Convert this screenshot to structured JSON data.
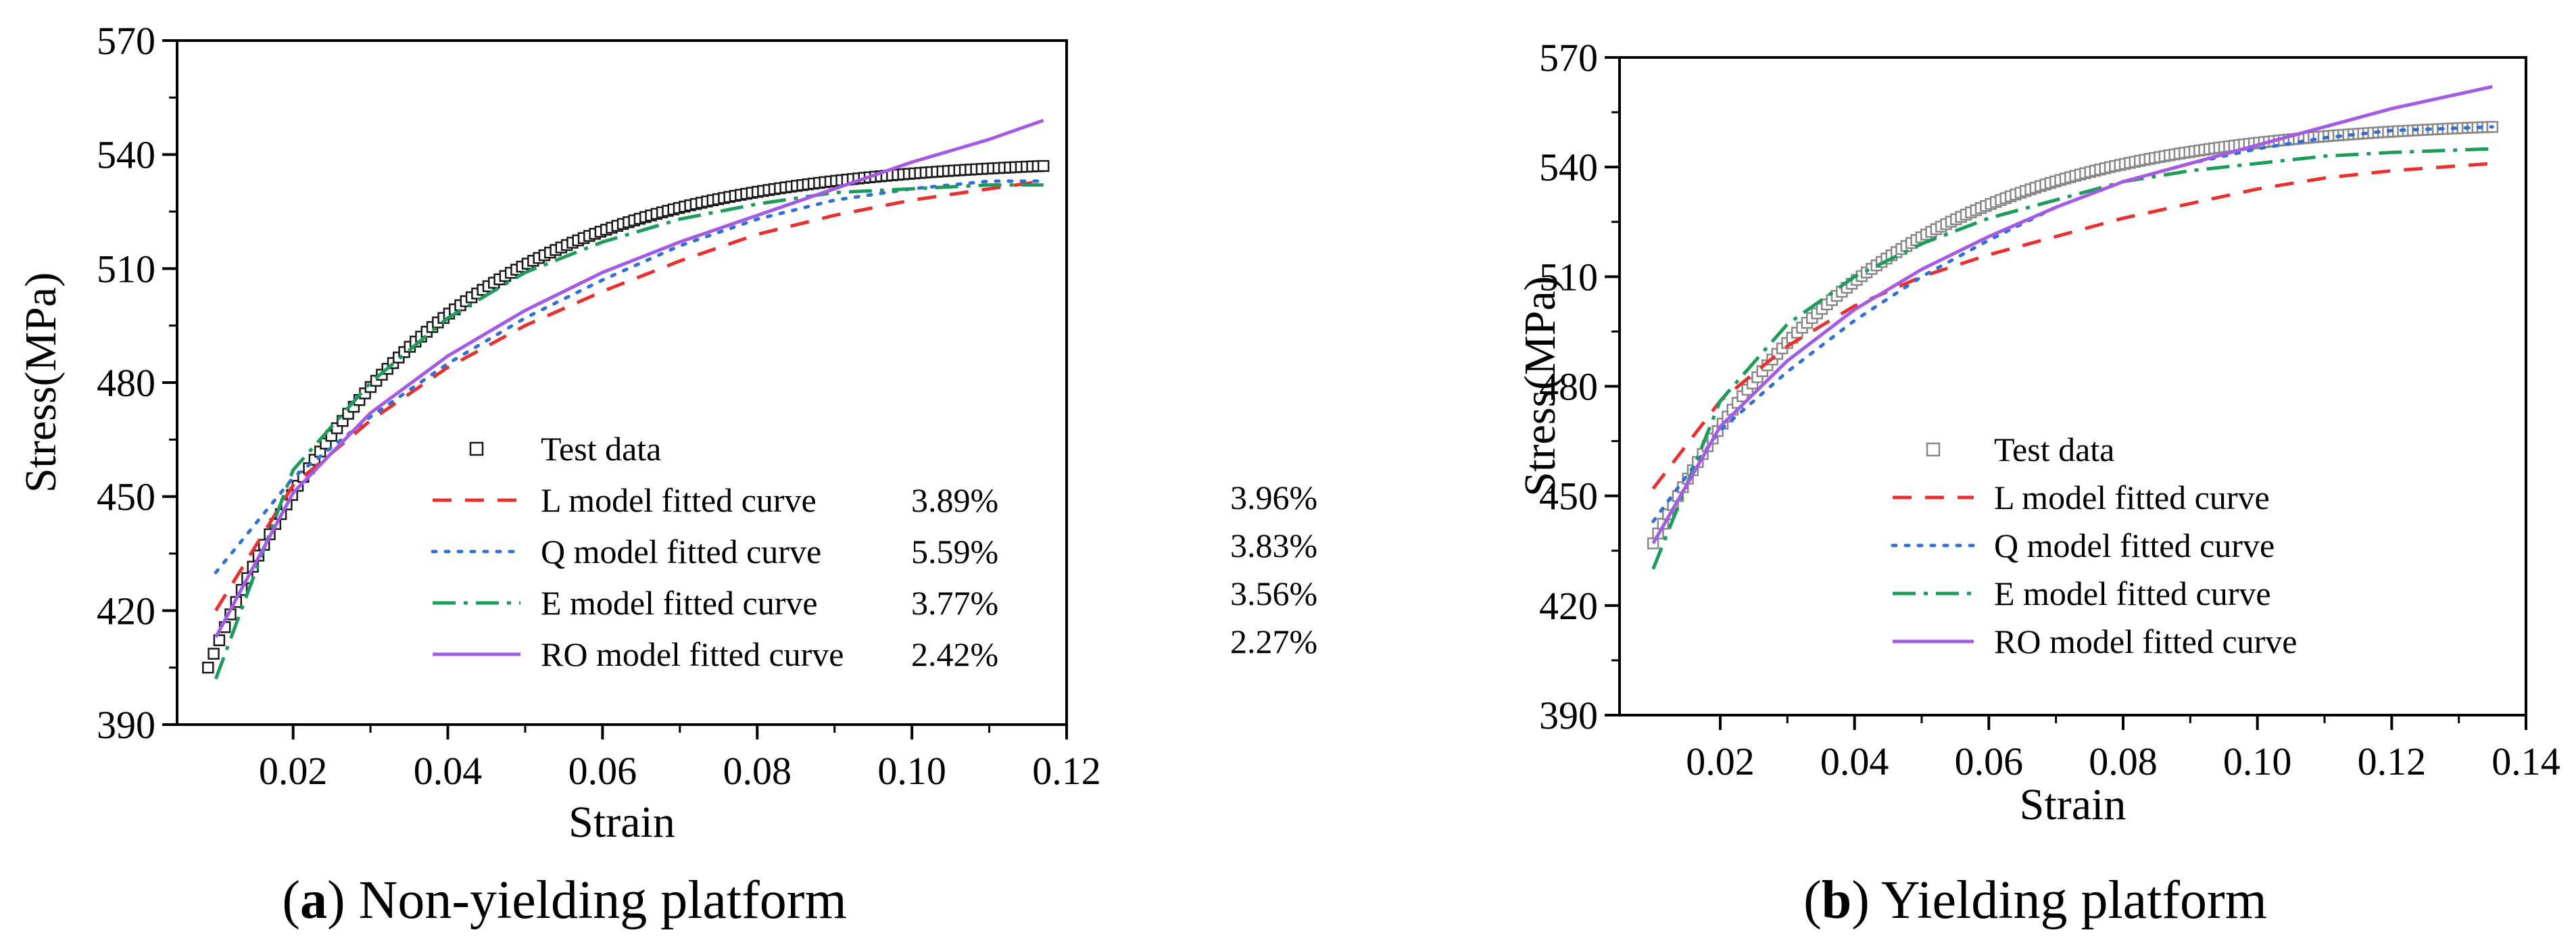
{
  "chart_data": [
    {
      "type": "scatter",
      "caption_letter": "a",
      "caption_text": ") Non-yielding platform",
      "caption_open": "(",
      "xlabel": "Strain",
      "ylabel": "Stress(MPa)",
      "xlim": [
        0.005,
        0.12
      ],
      "ylim": [
        390,
        570
      ],
      "xticks": [
        0.02,
        0.04,
        0.06,
        0.08,
        0.1,
        0.12
      ],
      "xtick_labels": [
        "0.02",
        "0.04",
        "0.06",
        "0.08",
        "0.10",
        "0.12"
      ],
      "yticks": [
        390,
        420,
        450,
        480,
        510,
        540,
        570
      ],
      "ytick_labels": [
        "390",
        "420",
        "450",
        "480",
        "510",
        "540",
        "570"
      ],
      "test_data": {
        "name": "Test data",
        "x_start": 0.009,
        "x_end": 0.117,
        "count": 150,
        "y_start": 405,
        "y_end": 537,
        "rate": 38
      },
      "series": [
        {
          "name": "L model fitted curve",
          "error": "3.89%",
          "style": "dashed",
          "color": "#e8312f",
          "x": [
            0.01,
            0.02,
            0.03,
            0.04,
            0.05,
            0.06,
            0.07,
            0.08,
            0.09,
            0.1,
            0.11,
            0.117
          ],
          "y": [
            420,
            453,
            470,
            484,
            495,
            504,
            512,
            519,
            524,
            528,
            531,
            533
          ]
        },
        {
          "name": "Q model fitted curve",
          "error": "5.59%",
          "style": "dotted",
          "color": "#2f6fd8",
          "x": [
            0.01,
            0.02,
            0.03,
            0.04,
            0.05,
            0.06,
            0.07,
            0.08,
            0.09,
            0.1,
            0.11,
            0.117
          ],
          "y": [
            430,
            455,
            471,
            485,
            497,
            507,
            516,
            523,
            528,
            531,
            533,
            533
          ]
        },
        {
          "name": "E model fitted curve",
          "error": "3.77%",
          "style": "dashdot",
          "color": "#1c9c5a",
          "x": [
            0.01,
            0.02,
            0.03,
            0.04,
            0.05,
            0.06,
            0.07,
            0.08,
            0.09,
            0.1,
            0.11,
            0.117
          ],
          "y": [
            402,
            457,
            480,
            497,
            509,
            517,
            523,
            527,
            530,
            531,
            532,
            532
          ]
        },
        {
          "name": "RO model fitted curve",
          "error": "2.42%",
          "style": "solid",
          "color": "#a55ae6",
          "x": [
            0.01,
            0.02,
            0.03,
            0.04,
            0.05,
            0.06,
            0.07,
            0.08,
            0.09,
            0.1,
            0.11,
            0.117
          ],
          "y": [
            413,
            451,
            472,
            487,
            499,
            509,
            517,
            524,
            531,
            538,
            544,
            549
          ]
        }
      ]
    },
    {
      "type": "scatter",
      "caption_letter": "b",
      "caption_text": ") Yielding platform",
      "caption_open": "(",
      "xlabel": "Strain",
      "ylabel": "Stress(MPa)",
      "xlim": [
        0.005,
        0.14
      ],
      "ylim": [
        390,
        570
      ],
      "xticks": [
        0.02,
        0.04,
        0.06,
        0.08,
        0.1,
        0.12,
        0.14
      ],
      "xtick_labels": [
        "0.02",
        "0.04",
        "0.06",
        "0.08",
        "0.10",
        "0.12",
        "0.14"
      ],
      "yticks": [
        390,
        420,
        450,
        480,
        510,
        540,
        570
      ],
      "ytick_labels": [
        "390",
        "420",
        "450",
        "480",
        "510",
        "540",
        "570"
      ],
      "test_data": {
        "name": "Test data",
        "x_start": 0.01,
        "x_end": 0.135,
        "count": 170,
        "y_start": 437,
        "y_end": 551,
        "rate": 32
      },
      "series": [
        {
          "name": "L model fitted curve",
          "error": "3.96%",
          "style": "dashed",
          "color": "#e8312f",
          "x": [
            0.01,
            0.02,
            0.03,
            0.04,
            0.05,
            0.06,
            0.07,
            0.08,
            0.09,
            0.1,
            0.11,
            0.12,
            0.135
          ],
          "y": [
            452,
            476,
            491,
            502,
            510,
            516,
            521,
            526,
            530,
            534,
            537,
            539,
            541
          ]
        },
        {
          "name": "Q model fitted curve",
          "error": "3.83%",
          "style": "dotted",
          "color": "#2f6fd8",
          "x": [
            0.01,
            0.02,
            0.03,
            0.04,
            0.05,
            0.06,
            0.07,
            0.08,
            0.09,
            0.1,
            0.11,
            0.12,
            0.135
          ],
          "y": [
            443,
            468,
            484,
            498,
            510,
            520,
            529,
            536,
            541,
            545,
            548,
            550,
            551
          ]
        },
        {
          "name": "E model fitted curve",
          "error": "3.56%",
          "style": "dashdot",
          "color": "#1c9c5a",
          "x": [
            0.01,
            0.02,
            0.03,
            0.04,
            0.05,
            0.06,
            0.07,
            0.08,
            0.09,
            0.1,
            0.11,
            0.12,
            0.135
          ],
          "y": [
            430,
            476,
            497,
            510,
            519,
            526,
            531,
            536,
            539,
            541,
            543,
            544,
            545
          ]
        },
        {
          "name": "RO model fitted curve",
          "error": "2.27%",
          "style": "solid",
          "color": "#a55ae6",
          "x": [
            0.01,
            0.02,
            0.03,
            0.04,
            0.05,
            0.06,
            0.07,
            0.08,
            0.09,
            0.1,
            0.11,
            0.12,
            0.135
          ],
          "y": [
            437,
            469,
            487,
            501,
            512,
            521,
            529,
            536,
            541,
            546,
            551,
            556,
            562
          ]
        }
      ]
    }
  ]
}
